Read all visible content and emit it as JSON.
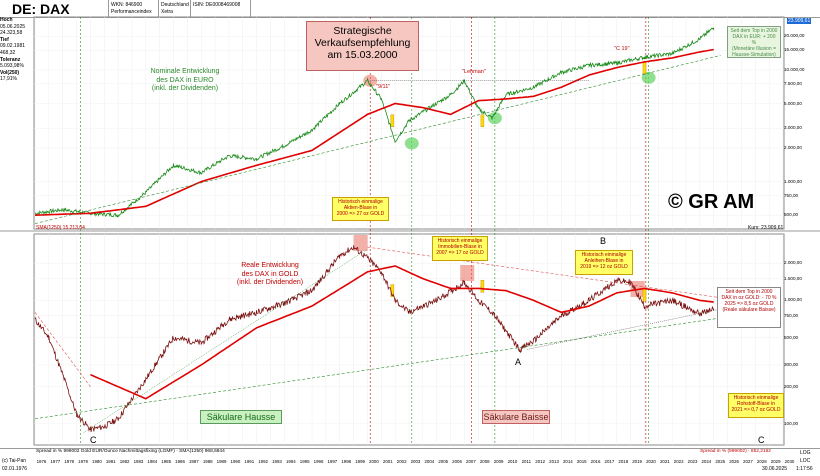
{
  "header": {
    "title": "DE: DAX",
    "wkn": "WKN: 846900",
    "perf": "Performanceindex",
    "country": "Deutschland",
    "venue": "Xetra",
    "isin": "ISIN: DE0008469008"
  },
  "info": [
    {
      "k": "Hoch",
      "v": "05.06.2025"
    },
    {
      "k": "",
      "v": "24.323,58"
    },
    {
      "k": "Tief",
      "v": "09.02.1981"
    },
    {
      "k": "",
      "v": "468,32"
    },
    {
      "k": "Toleranz",
      "v": "5.093,98%"
    },
    {
      "k": "Vol(250)",
      "v": "17,91%"
    }
  ],
  "top_panel": {
    "strategic_box": "Strategische\nVerkaufsempfehlung\nam 15.03.2000",
    "nominal_label": "Nominale Entwicklung\ndes DAX in EURO\n(inkl. der Dividenden)",
    "copyright": "© GR AM",
    "sma_label": "SMA(1250) 15.213,04",
    "kurs_label": "Kurs: 23.909,61",
    "last_price": "23.909,61",
    "top_right_box": "Seit dem Top in 2000\nDAX in EUR: + 200 %\n(Monetäre Illusion =\nHausse-Simulation)",
    "hist_box": "Historisch einmalige\nAktien-Blase in\n2000 => 27 oz GOLD",
    "lehman": "\"Lehman\"",
    "nine_eleven": "\"9/11\"",
    "c19": "\"C 19\"",
    "y_ticks": [
      "20.000,00",
      "15.000,00",
      "10.000,00",
      "7.500,00",
      "5.000,00",
      "3.000,00",
      "2.000,00",
      "1.000,00",
      "750,00",
      "500,00"
    ]
  },
  "bottom_panel": {
    "real_label": "Reale Entwicklung\ndes DAX in GOLD\n(inkl. der Dividenden)",
    "immo_box": "Historisch einmalige\nImmobilien-Blase in\n2007 => 17 oz GOLD",
    "anleihe_box": "Historisch einmalige\nAnleihen-Blase in\n2019 => 12 oz GOLD",
    "right_box": "Seit dem Top in 2000\nDAX in oz GOLD: - 70 %\n2025 => 8,5 oz GOLD\n(Reale säkulare Baisse)",
    "rohstoff_box": "Historisch einmalige\nRohstoff-Blase in\n2021 => 0,7 oz GOLD",
    "hausse": "Säkulare Hausse",
    "baisse": "Säkulare Baisse",
    "label_A": "A",
    "label_B": "B",
    "label_C_left": "C",
    "label_C_right": "C",
    "y_ticks": [
      "2.000,00",
      "1.500,00",
      "1.000,00",
      "750,00",
      "500,00",
      "300,00",
      "200,00",
      "100,00"
    ]
  },
  "footer": {
    "spread": "Spread in % 999002 Gold EUR/Ounce Nachmittagsfixing (LGMF) · SMA(1250) 968,6844",
    "spread_right": "Spread in % (999002) · 852,2162",
    "taipan": "(c) Tai-Pan",
    "start_date": "02.01.1976",
    "end_date": "30.06.2025",
    "time": "1:17:56",
    "log": "LOG",
    "loc": "LOC",
    "years": [
      "1976",
      "1977",
      "1978",
      "1979",
      "1980",
      "1981",
      "1982",
      "1983",
      "1984",
      "1985",
      "1986",
      "1987",
      "1988",
      "1989",
      "1990",
      "1991",
      "1992",
      "1993",
      "1994",
      "1995",
      "1996",
      "1997",
      "1998",
      "1999",
      "2000",
      "2001",
      "2002",
      "2003",
      "2004",
      "2005",
      "2006",
      "2007",
      "2008",
      "2009",
      "2010",
      "2011",
      "2012",
      "2013",
      "2014",
      "2015",
      "2016",
      "2017",
      "2018",
      "2019",
      "2020",
      "2021",
      "2022",
      "2023",
      "2024",
      "2025",
      "2026",
      "2027",
      "2028",
      "2029",
      "2030"
    ]
  },
  "chart_data": [
    {
      "type": "line",
      "title": "",
      "scale": "log",
      "series": [
        {
          "values_x": [
            1976,
            1978,
            1980,
            1982,
            1984,
            1986,
            1988,
            1990,
            1992,
            1994,
            1996,
            1998,
            2000,
            2001,
            2002,
            2003,
            2004,
            2006,
            2007,
            2008,
            2009,
            2010,
            2012,
            2014,
            2016,
            2018,
            2020,
            2022,
            2024,
            2025
          ],
          "values": [
            520,
            560,
            520,
            500,
            800,
            1400,
            1200,
            1700,
            1600,
            2100,
            2900,
            5000,
            8000,
            5500,
            2300,
            3500,
            4200,
            6000,
            8000,
            4500,
            3700,
            6000,
            7000,
            9500,
            11000,
            11500,
            13000,
            14000,
            19000,
            23909.61
          ]
        },
        {
          "name": "SMA(1250) 15.213,04",
          "values_x": [
            1976,
            1980,
            1984,
            1988,
            1992,
            1996,
            2000,
            2002,
            2004,
            2006,
            2008,
            2010,
            2012,
            2014,
            2016,
            2018,
            2020,
            2022,
            2024,
            2025
          ],
          "values": [
            500,
            520,
            600,
            1000,
            1400,
            1900,
            4000,
            5000,
            4600,
            4000,
            5300,
            5500,
            5800,
            7000,
            9000,
            10500,
            11800,
            12800,
            14500,
            15213.04
          ]
        }
      ]
    },
    {
      "type": "line",
      "title": "",
      "scale": "log",
      "series": [
        {
          "values_x": [
            1976,
            1977,
            1978,
            1979,
            1980,
            1981,
            1982,
            1984,
            1986,
            1988,
            1990,
            1992,
            1994,
            1996,
            1998,
            1999,
            2000,
            2001,
            2002,
            2003,
            2005,
            2007,
            2008,
            2009,
            2011,
            2012,
            2014,
            2016,
            2018,
            2019,
            2020,
            2022,
            2024,
            2025
          ],
          "values": [
            700,
            500,
            250,
            120,
            90,
            95,
            110,
            230,
            500,
            450,
            700,
            800,
            950,
            1200,
            2300,
            2700,
            2200,
            1700,
            1000,
            800,
            1000,
            1400,
            1000,
            800,
            400,
            470,
            750,
            1000,
            1450,
            1400,
            900,
            1000,
            780,
            852.2162
          ]
        },
        {
          "name": "SMA(1250) 968,6844",
          "values_x": [
            1980,
            1984,
            1988,
            1992,
            1996,
            2000,
            2002,
            2004,
            2006,
            2008,
            2010,
            2012,
            2014,
            2016,
            2018,
            2020,
            2022,
            2024,
            2025
          ],
          "values": [
            250,
            160,
            300,
            600,
            900,
            1700,
            1900,
            1500,
            1250,
            1250,
            1200,
            1000,
            800,
            900,
            1150,
            1250,
            1150,
            1000,
            968.6844
          ]
        }
      ]
    }
  ]
}
